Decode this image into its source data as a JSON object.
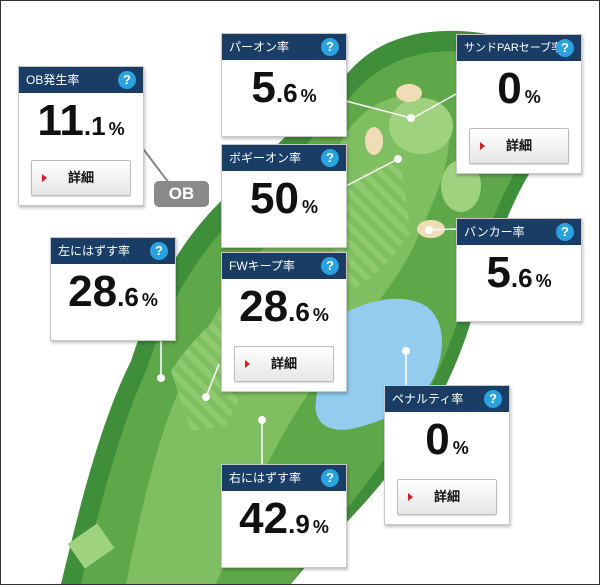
{
  "ob_tag": "OB",
  "stats": {
    "ob_rate": {
      "title": "OB発生率",
      "help": "?",
      "int": "11",
      "dec": ".1",
      "unit": "%",
      "button": "詳細"
    },
    "par_on": {
      "title": "パーオン率",
      "help": "?",
      "int": "5",
      "dec": ".6",
      "unit": "%"
    },
    "sand_save": {
      "title": "サンドPARセーブ率",
      "help": "?",
      "int": "0",
      "dec": "",
      "unit": "%",
      "button": "詳細"
    },
    "bogey_on": {
      "title": "ボギーオン率",
      "help": "?",
      "int": "50",
      "dec": "",
      "unit": "%"
    },
    "bunker": {
      "title": "バンカー率",
      "help": "?",
      "int": "5",
      "dec": ".6",
      "unit": "%"
    },
    "miss_left": {
      "title": "左にはずす率",
      "help": "?",
      "int": "28",
      "dec": ".6",
      "unit": "%"
    },
    "fw_keep": {
      "title": "FWキープ率",
      "help": "?",
      "int": "28",
      "dec": ".6",
      "unit": "%",
      "button": "詳細"
    },
    "penalty": {
      "title": "ペナルティ率",
      "help": "?",
      "int": "0",
      "dec": "",
      "unit": "%",
      "button": "詳細"
    },
    "miss_right": {
      "title": "右にはずす率",
      "help": "?",
      "int": "42",
      "dec": ".9",
      "unit": "%"
    }
  }
}
